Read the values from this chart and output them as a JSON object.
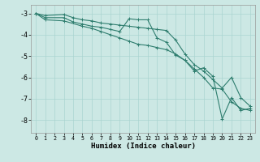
{
  "title": "",
  "xlabel": "Humidex (Indice chaleur)",
  "bg_color": "#cce8e4",
  "grid_color": "#aad4d0",
  "line_color": "#2e7d6e",
  "xlim": [
    -0.5,
    23.5
  ],
  "ylim": [
    -8.6,
    -2.6
  ],
  "yticks": [
    -3,
    -4,
    -5,
    -6,
    -7,
    -8
  ],
  "xticks": [
    0,
    1,
    2,
    3,
    4,
    5,
    6,
    7,
    8,
    9,
    10,
    11,
    12,
    13,
    14,
    15,
    16,
    17,
    18,
    19,
    20,
    21,
    22,
    23
  ],
  "line1_x": [
    0,
    1,
    3,
    4,
    5,
    6,
    7,
    8,
    9,
    10,
    11,
    12,
    13,
    14,
    15,
    16,
    17,
    18,
    19,
    20,
    21,
    22,
    23
  ],
  "line1_y": [
    -3.0,
    -3.1,
    -3.05,
    -3.2,
    -3.3,
    -3.35,
    -3.45,
    -3.5,
    -3.55,
    -3.6,
    -3.65,
    -3.7,
    -3.75,
    -3.8,
    -4.25,
    -4.9,
    -5.4,
    -5.7,
    -6.1,
    -6.5,
    -6.0,
    -6.95,
    -7.35
  ],
  "line2_x": [
    0,
    1,
    3,
    4,
    5,
    6,
    7,
    8,
    9,
    10,
    11,
    12,
    13,
    14,
    15,
    16,
    17,
    18,
    19,
    20,
    21,
    22,
    23
  ],
  "line2_y": [
    -3.0,
    -3.2,
    -3.2,
    -3.4,
    -3.5,
    -3.6,
    -3.65,
    -3.75,
    -3.85,
    -3.25,
    -3.3,
    -3.3,
    -4.15,
    -4.35,
    -4.95,
    -5.2,
    -5.7,
    -5.55,
    -5.95,
    -7.95,
    -6.95,
    -7.55,
    -7.45
  ],
  "line3_x": [
    0,
    1,
    3,
    5,
    6,
    7,
    8,
    9,
    10,
    11,
    12,
    13,
    14,
    15,
    16,
    17,
    18,
    19,
    20,
    21,
    22,
    23
  ],
  "line3_y": [
    -3.0,
    -3.3,
    -3.35,
    -3.6,
    -3.7,
    -3.85,
    -4.0,
    -4.15,
    -4.3,
    -4.45,
    -4.5,
    -4.6,
    -4.7,
    -4.9,
    -5.2,
    -5.6,
    -6.0,
    -6.5,
    -6.55,
    -7.15,
    -7.45,
    -7.55
  ]
}
